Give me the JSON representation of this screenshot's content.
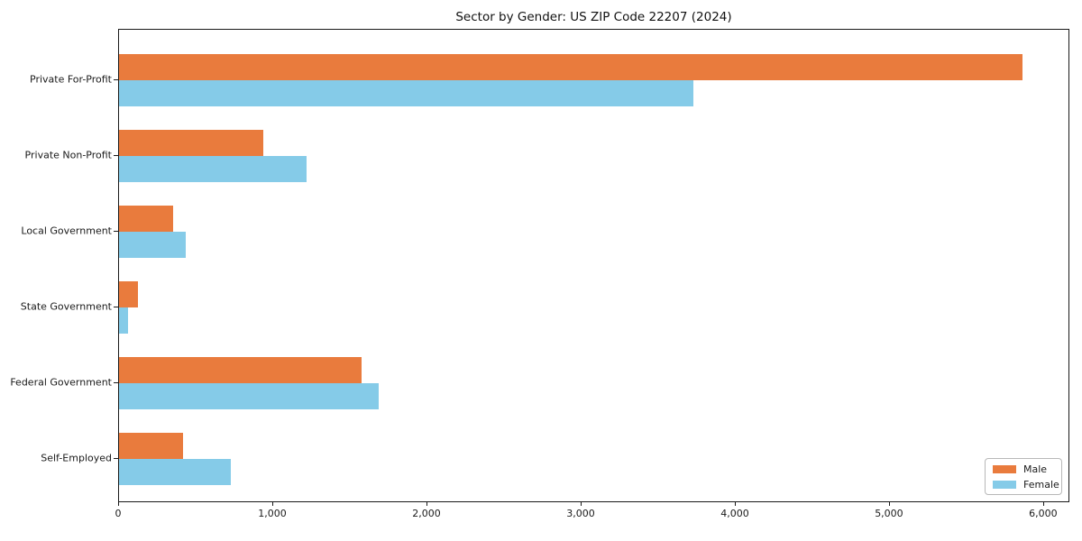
{
  "title": "Sector by Gender: US ZIP Code 22207 (2024)",
  "chart_data": {
    "type": "bar",
    "orientation": "horizontal",
    "title": "Sector by Gender: US ZIP Code 22207 (2024)",
    "xlabel": "",
    "ylabel": "",
    "categories": [
      "Private For-Profit",
      "Private Non-Profit",
      "Local Government",
      "State Government",
      "Federal Government",
      "Self-Employed"
    ],
    "series": [
      {
        "name": "Male",
        "color": "#e97b3d",
        "values": [
          5870,
          940,
          350,
          125,
          1575,
          415
        ]
      },
      {
        "name": "Female",
        "color": "#85cbe8",
        "values": [
          3730,
          1220,
          435,
          60,
          1685,
          725
        ]
      }
    ],
    "xlim": [
      0,
      6170
    ],
    "xticks": [
      0,
      1000,
      2000,
      3000,
      4000,
      5000,
      6000
    ],
    "xtick_labels": [
      "0",
      "1,000",
      "2,000",
      "3,000",
      "4,000",
      "5,000",
      "6,000"
    ],
    "grid": false,
    "legend": {
      "position": "lower right",
      "entries": [
        "Male",
        "Female"
      ]
    }
  }
}
